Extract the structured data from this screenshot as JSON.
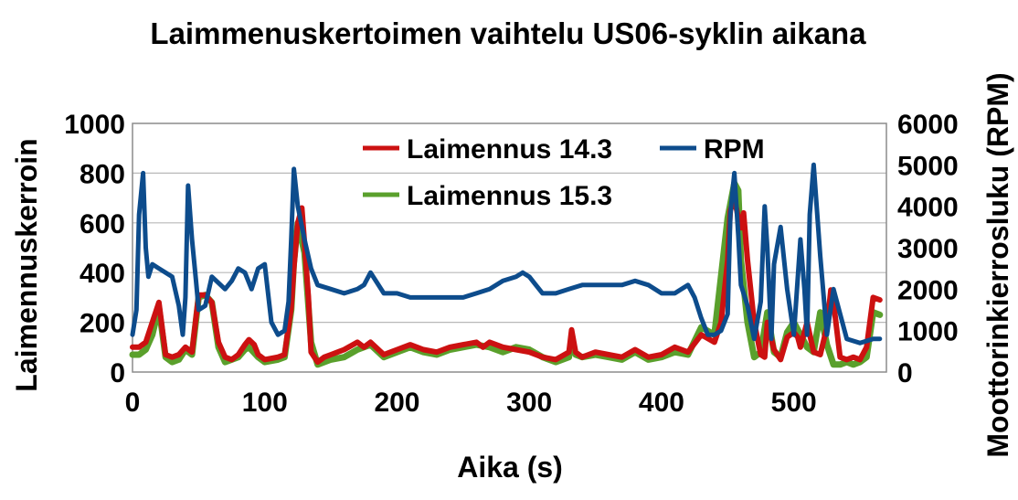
{
  "chart_data": {
    "type": "line",
    "title": "Laimmenuskertoimen vaihtelu US06-syklin aikana",
    "xlabel": "Aika (s)",
    "ylabel": "Laimennuskerroin",
    "y2label": "Moottorinkierrosluku (RPM)",
    "xlim": [
      0,
      570
    ],
    "ylim": [
      0,
      1000
    ],
    "y2lim": [
      0,
      6000
    ],
    "xticks": [
      0,
      100,
      200,
      300,
      400,
      500
    ],
    "yticks": [
      0,
      200,
      400,
      600,
      800,
      1000
    ],
    "y2ticks": [
      0,
      1000,
      2000,
      3000,
      4000,
      5000,
      6000
    ],
    "grid": "horizontal",
    "legend": "top-center",
    "series": [
      {
        "name": "Laimennus 15.3",
        "axis": "left",
        "color": "#5aa02c",
        "x": [
          0,
          5,
          10,
          15,
          20,
          25,
          30,
          35,
          40,
          45,
          50,
          55,
          60,
          65,
          70,
          80,
          85,
          88,
          95,
          100,
          110,
          115,
          120,
          122,
          125,
          130,
          135,
          140,
          150,
          160,
          170,
          180,
          190,
          200,
          210,
          220,
          230,
          240,
          250,
          260,
          270,
          280,
          290,
          300,
          310,
          320,
          330,
          332,
          335,
          340,
          350,
          360,
          370,
          380,
          390,
          400,
          410,
          420,
          430,
          440,
          450,
          455,
          458,
          460,
          465,
          470,
          475,
          480,
          485,
          490,
          495,
          500,
          505,
          510,
          515,
          520,
          525,
          530,
          535,
          540,
          545,
          550,
          555,
          560,
          565
        ],
        "y": [
          70,
          70,
          90,
          150,
          260,
          60,
          40,
          50,
          90,
          70,
          300,
          310,
          280,
          100,
          40,
          60,
          90,
          100,
          60,
          40,
          50,
          60,
          250,
          440,
          600,
          480,
          120,
          30,
          50,
          60,
          90,
          110,
          60,
          80,
          100,
          80,
          70,
          90,
          100,
          110,
          100,
          80,
          100,
          90,
          60,
          40,
          60,
          140,
          70,
          60,
          70,
          60,
          50,
          80,
          50,
          60,
          80,
          70,
          180,
          150,
          620,
          760,
          730,
          450,
          200,
          60,
          80,
          240,
          80,
          60,
          160,
          200,
          150,
          100,
          80,
          240,
          110,
          30,
          30,
          40,
          30,
          40,
          60,
          240,
          230
        ]
      },
      {
        "name": "Laimennus 14.3",
        "axis": "left",
        "color": "#cc1111",
        "x": [
          0,
          5,
          10,
          15,
          20,
          25,
          30,
          35,
          40,
          45,
          50,
          55,
          60,
          65,
          70,
          75,
          80,
          85,
          88,
          92,
          95,
          100,
          110,
          115,
          120,
          122,
          125,
          128,
          130,
          133,
          135,
          140,
          145,
          150,
          160,
          170,
          175,
          180,
          190,
          200,
          210,
          220,
          230,
          240,
          250,
          260,
          265,
          270,
          280,
          290,
          300,
          310,
          320,
          330,
          332,
          335,
          340,
          350,
          360,
          370,
          380,
          390,
          400,
          410,
          420,
          430,
          440,
          445,
          450,
          452,
          455,
          458,
          460,
          462,
          465,
          470,
          475,
          478,
          480,
          485,
          490,
          495,
          500,
          503,
          505,
          510,
          515,
          520,
          525,
          528,
          530,
          535,
          540,
          545,
          550,
          555,
          560,
          565
        ],
        "y": [
          100,
          100,
          120,
          200,
          280,
          70,
          60,
          70,
          100,
          80,
          310,
          310,
          280,
          120,
          60,
          50,
          70,
          110,
          130,
          110,
          70,
          50,
          60,
          70,
          260,
          420,
          600,
          660,
          520,
          300,
          80,
          40,
          60,
          70,
          90,
          120,
          100,
          120,
          70,
          90,
          110,
          90,
          80,
          100,
          110,
          120,
          100,
          120,
          100,
          90,
          80,
          60,
          50,
          80,
          170,
          80,
          60,
          80,
          70,
          60,
          90,
          60,
          70,
          100,
          80,
          150,
          120,
          200,
          450,
          650,
          700,
          620,
          580,
          640,
          450,
          200,
          70,
          60,
          200,
          90,
          50,
          140,
          160,
          140,
          100,
          200,
          80,
          70,
          180,
          330,
          280,
          60,
          50,
          60,
          50,
          100,
          300,
          290
        ]
      },
      {
        "name": "RPM",
        "axis": "right",
        "color": "#0d4c8c",
        "x": [
          0,
          3,
          5,
          8,
          10,
          12,
          15,
          20,
          25,
          30,
          35,
          38,
          40,
          42,
          45,
          48,
          50,
          55,
          60,
          70,
          75,
          80,
          85,
          90,
          95,
          100,
          105,
          110,
          115,
          118,
          120,
          122,
          125,
          130,
          135,
          140,
          150,
          160,
          170,
          175,
          180,
          190,
          200,
          210,
          220,
          230,
          240,
          250,
          260,
          270,
          280,
          290,
          295,
          300,
          305,
          310,
          320,
          330,
          340,
          350,
          360,
          370,
          380,
          390,
          400,
          410,
          415,
          420,
          425,
          430,
          435,
          440,
          445,
          450,
          452,
          455,
          458,
          460,
          465,
          470,
          475,
          478,
          480,
          483,
          485,
          490,
          495,
          500,
          505,
          508,
          510,
          512,
          515,
          520,
          525,
          530,
          540,
          550,
          560,
          565
        ],
        "y": [
          900,
          1500,
          3800,
          4800,
          3000,
          2300,
          2600,
          2500,
          2400,
          2300,
          1600,
          900,
          1800,
          4500,
          3200,
          2200,
          1500,
          1600,
          2300,
          2000,
          2200,
          2500,
          2400,
          2000,
          2500,
          2600,
          1200,
          900,
          1000,
          1700,
          3200,
          4900,
          4000,
          3200,
          2500,
          2100,
          2000,
          1900,
          2000,
          2100,
          2400,
          1900,
          1900,
          1800,
          1800,
          1800,
          1800,
          1800,
          1900,
          2000,
          2200,
          2300,
          2400,
          2300,
          2100,
          1900,
          1900,
          2000,
          2100,
          2100,
          2100,
          2100,
          2200,
          2100,
          1900,
          1900,
          2000,
          2100,
          1800,
          1300,
          900,
          900,
          1000,
          1400,
          3800,
          4800,
          3300,
          2100,
          1600,
          800,
          1700,
          4000,
          3000,
          800,
          2600,
          3500,
          2000,
          900,
          3200,
          2000,
          900,
          3800,
          5000,
          2800,
          900,
          2000,
          800,
          700,
          800,
          800
        ]
      }
    ]
  }
}
